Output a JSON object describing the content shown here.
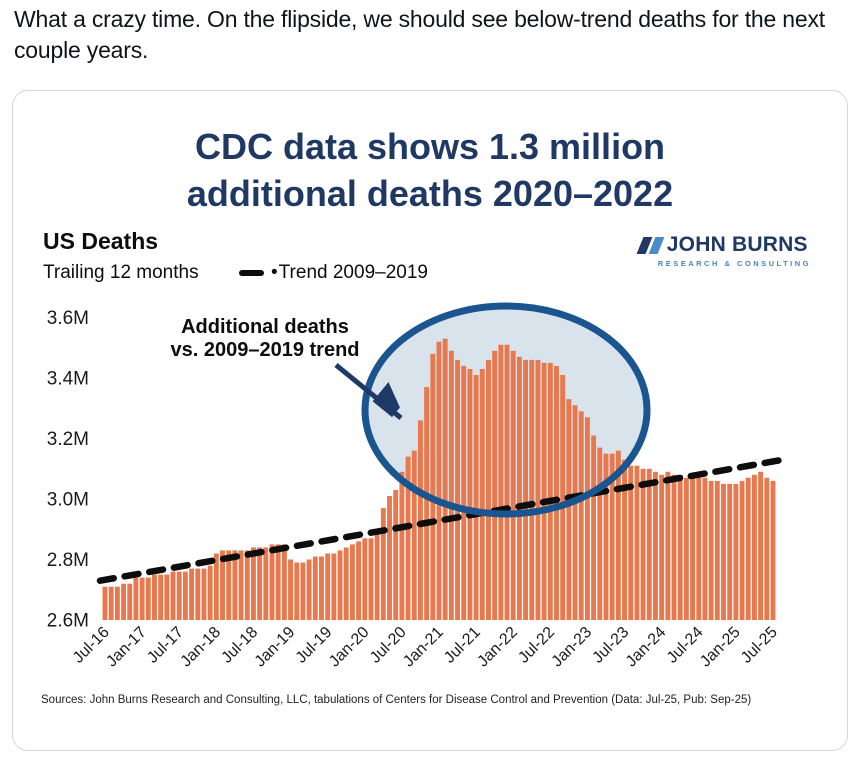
{
  "post": {
    "text": "What a crazy time. On the flipside, we should see below-trend deaths for the next couple years."
  },
  "card": {
    "title_line1": "CDC data shows 1.3 million",
    "title_line2": "additional deaths 2020–2022",
    "header": {
      "title": "US Deaths",
      "subtitle": "Trailing 12 months",
      "legend_bullet": "•",
      "legend_label": "Trend 2009–2019"
    },
    "logo": {
      "name": "JOHN BURNS",
      "tagline": "RESEARCH & CONSULTING"
    },
    "annotation": {
      "line1": "Additional deaths",
      "line2": "vs. 2009–2019 trend"
    },
    "sources": "Sources: John Burns Research and Consulting, LLC, tabulations of Centers for Disease Control and Prevention (Data: Jul-25, Pub: Sep-25)"
  },
  "colors": {
    "bar": "#E8794F",
    "trend": "#0d0d0d",
    "ellipse_fill": "#D9E3EC",
    "ellipse_stroke": "#1A5590",
    "arrow": "#203A68",
    "title_navy": "#1F3864",
    "tweet_text": "#0F1419",
    "card_border": "#CFD9DE"
  },
  "chart_data": {
    "type": "bar",
    "title": "CDC data shows 1.3 million additional deaths 2020–2022",
    "series_label": "US Deaths, trailing 12 months",
    "unit": "millions of deaths",
    "frequency": "monthly",
    "x_start": "Jul-2016",
    "x_end": "Jul-2025",
    "ylim": [
      2.6,
      3.6
    ],
    "grid": false,
    "legend_position": "top-left",
    "ytick_labels": [
      "3.6M",
      "3.4M",
      "3.2M",
      "3.0M",
      "2.8M",
      "2.6M"
    ],
    "ytick_values": [
      3.6,
      3.4,
      3.2,
      3.0,
      2.8,
      2.6
    ],
    "xtick_labels": [
      "Jul-16",
      "Jan-17",
      "Jul-17",
      "Jan-18",
      "Jul-18",
      "Jan-19",
      "Jul-19",
      "Jan-20",
      "Jul-20",
      "Jan-21",
      "Jul-21",
      "Jan-22",
      "Jul-22",
      "Jan-23",
      "Jul-23",
      "Jan-24",
      "Jul-24",
      "Jan-25",
      "Jul-25"
    ],
    "xtick_every_n_bars": 6,
    "values": [
      2.71,
      2.71,
      2.71,
      2.72,
      2.72,
      2.74,
      2.74,
      2.74,
      2.75,
      2.75,
      2.75,
      2.76,
      2.76,
      2.76,
      2.77,
      2.77,
      2.77,
      2.78,
      2.82,
      2.83,
      2.83,
      2.83,
      2.83,
      2.83,
      2.84,
      2.84,
      2.84,
      2.85,
      2.85,
      2.85,
      2.8,
      2.79,
      2.79,
      2.8,
      2.81,
      2.81,
      2.82,
      2.82,
      2.83,
      2.84,
      2.85,
      2.86,
      2.87,
      2.87,
      2.89,
      2.97,
      3.01,
      3.03,
      3.09,
      3.14,
      3.16,
      3.26,
      3.37,
      3.48,
      3.52,
      3.53,
      3.49,
      3.46,
      3.44,
      3.43,
      3.41,
      3.43,
      3.46,
      3.49,
      3.51,
      3.51,
      3.49,
      3.47,
      3.46,
      3.46,
      3.46,
      3.45,
      3.45,
      3.44,
      3.41,
      3.33,
      3.31,
      3.29,
      3.27,
      3.21,
      3.17,
      3.15,
      3.15,
      3.16,
      3.13,
      3.11,
      3.11,
      3.1,
      3.1,
      3.09,
      3.08,
      3.09,
      3.08,
      3.08,
      3.07,
      3.07,
      3.07,
      3.07,
      3.06,
      3.06,
      3.05,
      3.05,
      3.05,
      3.06,
      3.07,
      3.08,
      3.09,
      3.07,
      3.06
    ],
    "trend": {
      "label": "Trend 2009–2019",
      "style": "dashed",
      "start_value": 2.73,
      "end_value": 3.13
    },
    "annotation": "Additional deaths vs. 2009–2019 trend"
  }
}
